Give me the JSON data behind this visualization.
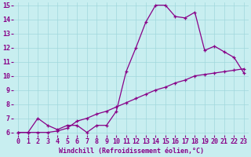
{
  "xlabel": "Windchill (Refroidissement éolien,°C)",
  "xlim": [
    -0.5,
    23.5
  ],
  "ylim": [
    5.8,
    15.2
  ],
  "yticks": [
    6,
    7,
    8,
    9,
    10,
    11,
    12,
    13,
    14,
    15
  ],
  "xticks": [
    0,
    1,
    2,
    3,
    4,
    5,
    6,
    7,
    8,
    9,
    10,
    11,
    12,
    13,
    14,
    15,
    16,
    17,
    18,
    19,
    20,
    21,
    22,
    23
  ],
  "background_color": "#c8eef0",
  "line_color": "#880088",
  "grid_color": "#a0d8dc",
  "line1_x": [
    0,
    1,
    2,
    3,
    4,
    5,
    6,
    7,
    8,
    9,
    10,
    11,
    12,
    13,
    14,
    15,
    16,
    17,
    18,
    19,
    20,
    21,
    22,
    23
  ],
  "line1_y": [
    6.0,
    6.0,
    7.0,
    6.5,
    6.2,
    6.5,
    6.5,
    6.0,
    6.5,
    6.5,
    7.5,
    10.3,
    12.0,
    13.8,
    15.0,
    15.0,
    14.2,
    14.1,
    14.5,
    11.8,
    12.1,
    11.7,
    11.3,
    10.2
  ],
  "line2_x": [
    0,
    1,
    2,
    3,
    4,
    5,
    6,
    7,
    8,
    9,
    10,
    11,
    12,
    13,
    14,
    15,
    16,
    17,
    18,
    19,
    20,
    21,
    22,
    23
  ],
  "line2_y": [
    6.0,
    6.0,
    6.0,
    6.0,
    6.1,
    6.3,
    6.8,
    7.0,
    7.3,
    7.5,
    7.8,
    8.1,
    8.4,
    8.7,
    9.0,
    9.2,
    9.5,
    9.7,
    10.0,
    10.1,
    10.2,
    10.3,
    10.4,
    10.5
  ],
  "font_size_xlabel": 6,
  "font_size_ticks": 6,
  "marker": "+"
}
